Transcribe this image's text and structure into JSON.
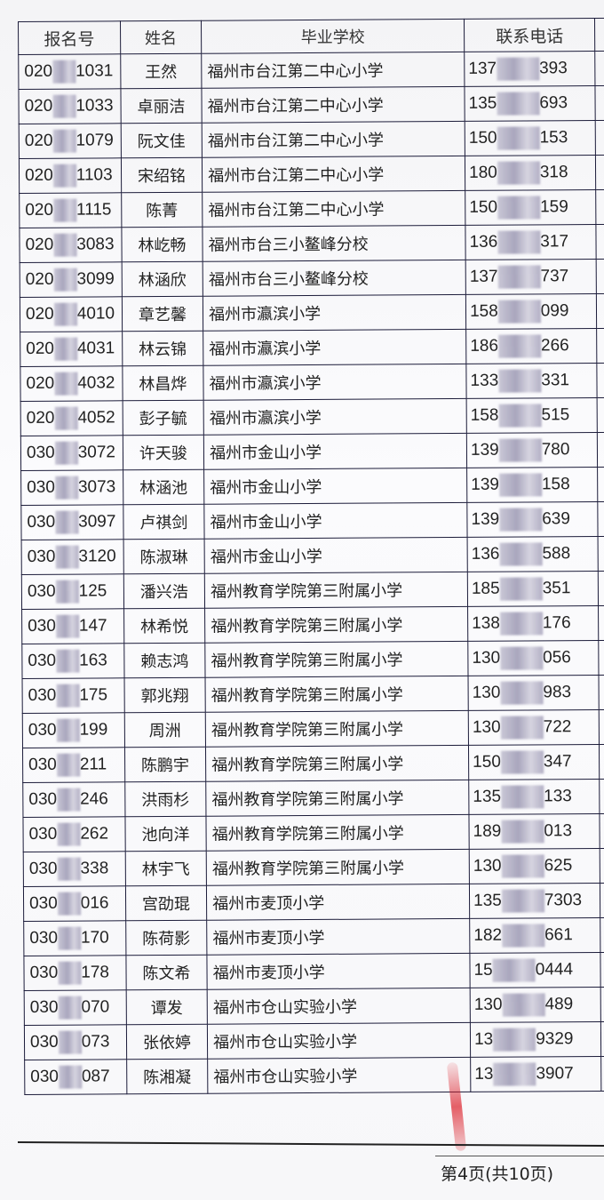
{
  "headers": {
    "id": "报名号",
    "name": "姓名",
    "school": "毕业学校",
    "phone": "联系电话"
  },
  "rows": [
    {
      "id_prefix": "020",
      "id_suffix": "1031",
      "name": "王然",
      "school": "福州市台江第二中心小学",
      "phone_prefix": "137",
      "phone_suffix": "393"
    },
    {
      "id_prefix": "020",
      "id_suffix": "1033",
      "name": "卓丽洁",
      "school": "福州市台江第二中心小学",
      "phone_prefix": "135",
      "phone_suffix": "693"
    },
    {
      "id_prefix": "020",
      "id_suffix": "1079",
      "name": "阮文佳",
      "school": "福州市台江第二中心小学",
      "phone_prefix": "150",
      "phone_suffix": "153"
    },
    {
      "id_prefix": "020",
      "id_suffix": "1103",
      "name": "宋绍铭",
      "school": "福州市台江第二中心小学",
      "phone_prefix": "180",
      "phone_suffix": "318"
    },
    {
      "id_prefix": "020",
      "id_suffix": "1115",
      "name": "陈菁",
      "school": "福州市台江第二中心小学",
      "phone_prefix": "150",
      "phone_suffix": "159"
    },
    {
      "id_prefix": "020",
      "id_suffix": "3083",
      "name": "林屹畅",
      "school": "福州市台三小鳌峰分校",
      "phone_prefix": "136",
      "phone_suffix": "317"
    },
    {
      "id_prefix": "020",
      "id_suffix": "3099",
      "name": "林涵欣",
      "school": "福州市台三小鳌峰分校",
      "phone_prefix": "137",
      "phone_suffix": "737"
    },
    {
      "id_prefix": "020",
      "id_suffix": "4010",
      "name": "章艺馨",
      "school": "福州市瀛滨小学",
      "phone_prefix": "158",
      "phone_suffix": "099"
    },
    {
      "id_prefix": "020",
      "id_suffix": "4031",
      "name": "林云锦",
      "school": "福州市瀛滨小学",
      "phone_prefix": "186",
      "phone_suffix": "266"
    },
    {
      "id_prefix": "020",
      "id_suffix": "4032",
      "name": "林昌烨",
      "school": "福州市瀛滨小学",
      "phone_prefix": "133",
      "phone_suffix": "331"
    },
    {
      "id_prefix": "020",
      "id_suffix": "4052",
      "name": "彭子毓",
      "school": "福州市瀛滨小学",
      "phone_prefix": "158",
      "phone_suffix": "515"
    },
    {
      "id_prefix": "030",
      "id_suffix": "3072",
      "name": "许天骏",
      "school": "福州市金山小学",
      "phone_prefix": "139",
      "phone_suffix": "780"
    },
    {
      "id_prefix": "030",
      "id_suffix": "3073",
      "name": "林涵池",
      "school": "福州市金山小学",
      "phone_prefix": "139",
      "phone_suffix": "158"
    },
    {
      "id_prefix": "030",
      "id_suffix": "3097",
      "name": "卢祺剑",
      "school": "福州市金山小学",
      "phone_prefix": "139",
      "phone_suffix": "639"
    },
    {
      "id_prefix": "030",
      "id_suffix": "3120",
      "name": "陈淑琳",
      "school": "福州市金山小学",
      "phone_prefix": "136",
      "phone_suffix": "588"
    },
    {
      "id_prefix": "030",
      "id_suffix": "125",
      "name": "潘兴浩",
      "school": "福州教育学院第三附属小学",
      "phone_prefix": "185",
      "phone_suffix": "351"
    },
    {
      "id_prefix": "030",
      "id_suffix": "147",
      "name": "林希悦",
      "school": "福州教育学院第三附属小学",
      "phone_prefix": "138",
      "phone_suffix": "176"
    },
    {
      "id_prefix": "030",
      "id_suffix": "163",
      "name": "赖志鸿",
      "school": "福州教育学院第三附属小学",
      "phone_prefix": "130",
      "phone_suffix": "056"
    },
    {
      "id_prefix": "030",
      "id_suffix": "175",
      "name": "郭兆翔",
      "school": "福州教育学院第三附属小学",
      "phone_prefix": "130",
      "phone_suffix": "983"
    },
    {
      "id_prefix": "030",
      "id_suffix": "199",
      "name": "周洲",
      "school": "福州教育学院第三附属小学",
      "phone_prefix": "130",
      "phone_suffix": "722"
    },
    {
      "id_prefix": "030",
      "id_suffix": "211",
      "name": "陈鹏宇",
      "school": "福州教育学院第三附属小学",
      "phone_prefix": "150",
      "phone_suffix": "347"
    },
    {
      "id_prefix": "030",
      "id_suffix": "246",
      "name": "洪雨杉",
      "school": "福州教育学院第三附属小学",
      "phone_prefix": "135",
      "phone_suffix": "133"
    },
    {
      "id_prefix": "030",
      "id_suffix": "262",
      "name": "池向洋",
      "school": "福州教育学院第三附属小学",
      "phone_prefix": "189",
      "phone_suffix": "013"
    },
    {
      "id_prefix": "030",
      "id_suffix": "338",
      "name": "林宇飞",
      "school": "福州教育学院第三附属小学",
      "phone_prefix": "130",
      "phone_suffix": "625"
    },
    {
      "id_prefix": "030",
      "id_suffix": "016",
      "name": "宫劭琨",
      "school": "福州市麦顶小学",
      "phone_prefix": "135",
      "phone_suffix": "7303"
    },
    {
      "id_prefix": "030",
      "id_suffix": "170",
      "name": "陈荷影",
      "school": "福州市麦顶小学",
      "phone_prefix": "182",
      "phone_suffix": "661"
    },
    {
      "id_prefix": "030",
      "id_suffix": "178",
      "name": "陈文希",
      "school": "福州市麦顶小学",
      "phone_prefix": "15",
      "phone_suffix": "0444"
    },
    {
      "id_prefix": "030",
      "id_suffix": "070",
      "name": "谭发",
      "school": "福州市仓山实验小学",
      "phone_prefix": "130",
      "phone_suffix": "489"
    },
    {
      "id_prefix": "030",
      "id_suffix": "073",
      "name": "张依婷",
      "school": "福州市仓山实验小学",
      "phone_prefix": "13",
      "phone_suffix": "9329"
    },
    {
      "id_prefix": "030",
      "id_suffix": "087",
      "name": "陈湘凝",
      "school": "福州市仓山实验小学",
      "phone_prefix": "13",
      "phone_suffix": "3907"
    }
  ],
  "footer": {
    "page": "第4页(共10页)"
  }
}
